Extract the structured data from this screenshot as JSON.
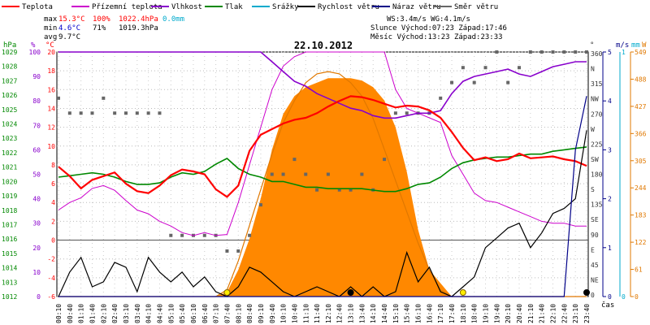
{
  "chart_data": {
    "type": "line",
    "title": "22.10.2012",
    "legend": [
      {
        "name": "Teplota",
        "color": "#ff0000"
      },
      {
        "name": "Přízemní teplota",
        "color": "#cc00cc"
      },
      {
        "name": "Vlhkost",
        "color": "#8800cc"
      },
      {
        "name": "Tlak",
        "color": "#008800"
      },
      {
        "name": "Srážky",
        "color": "#00aacc"
      },
      {
        "name": "Rychlost větru",
        "color": "#000000"
      },
      {
        "name": "Náraz větru",
        "color": "#000088"
      },
      {
        "name": "Směr větru",
        "color": "#666666"
      }
    ],
    "stats": {
      "max": {
        "label": "max",
        "temp": "15.3°C",
        "hum": "100%",
        "press": "1022.4hPa",
        "rain": "0.0mm"
      },
      "min": {
        "label": "min",
        "temp": "4.6°C",
        "hum": "71%",
        "press": "1019.3hPa"
      },
      "avg": {
        "label": "avg",
        "temp": "9.7°C"
      }
    },
    "info": {
      "line1": "WS:3.4m/s        WG:4.1m/s",
      "line2": "Slunce Východ:07:23  Západ:17:46",
      "line3": "Měsíc  Východ:13:23  Západ:23:33"
    },
    "axis_units": {
      "press": "hPa",
      "hum": "%",
      "temp": "°C",
      "dir": "°",
      "wind": "m/s",
      "rain": "mm",
      "solar": "W"
    },
    "axes": {
      "pressure": {
        "ticks": [
          "1029",
          "1028",
          "1027",
          "1026",
          "1025",
          "1024",
          "1023",
          "1022",
          "1021",
          "1020",
          "1019",
          "1018",
          "1017",
          "1016",
          "1015",
          "1014",
          "1013",
          "1012"
        ]
      },
      "humidity": {
        "ticks": [
          "100",
          "90",
          "80",
          "70",
          "60",
          "50",
          "40",
          "30",
          "20",
          "10",
          "0"
        ]
      },
      "temperature": {
        "ticks": [
          "20",
          "18",
          "16",
          "14",
          "12",
          "10",
          "8",
          "6",
          "4",
          "2",
          "0",
          "-2",
          "-4",
          "-6"
        ]
      },
      "direction": {
        "ticks": [
          "360",
          "N",
          "315",
          "NW",
          "270",
          "W",
          "225",
          "SW",
          "180",
          "S",
          "135",
          "SE",
          "90",
          "E",
          "45",
          "NE",
          "0"
        ]
      },
      "wind": {
        "ticks": [
          "5",
          "4",
          "3",
          "2",
          "1",
          "0"
        ]
      },
      "rain": {
        "ticks": [
          "1",
          "0"
        ]
      },
      "solar": {
        "ticks": [
          "549",
          "488",
          "427",
          "366",
          "305",
          "244",
          "183",
          "122",
          "61",
          "0"
        ]
      },
      "x_label": "čas"
    },
    "x": [
      "00:10",
      "00:40",
      "01:10",
      "01:40",
      "02:10",
      "02:40",
      "03:10",
      "03:40",
      "04:10",
      "04:40",
      "05:10",
      "05:40",
      "06:10",
      "06:40",
      "07:10",
      "07:40",
      "08:10",
      "08:40",
      "09:10",
      "09:40",
      "10:10",
      "10:40",
      "11:10",
      "11:40",
      "12:10",
      "12:40",
      "13:10",
      "13:40",
      "14:10",
      "14:40",
      "15:10",
      "15:40",
      "16:10",
      "16:40",
      "17:10",
      "17:40",
      "18:10",
      "18:40",
      "19:10",
      "19:40",
      "20:10",
      "20:40",
      "21:10",
      "21:40",
      "22:10",
      "22:40",
      "23:10",
      "23:40"
    ],
    "ylim": {
      "temp": [
        -6,
        20
      ],
      "hum": [
        0,
        100
      ],
      "press": [
        1012,
        1029
      ],
      "wind": [
        0,
        5
      ],
      "dir": [
        0,
        360
      ],
      "solar": [
        0,
        549
      ]
    },
    "series": {
      "temp": [
        7.8,
        6.8,
        5.5,
        6.4,
        6.8,
        7.2,
        6.0,
        5.2,
        5.0,
        5.8,
        6.9,
        7.5,
        7.3,
        7.0,
        5.4,
        4.6,
        5.8,
        9.5,
        11.2,
        11.8,
        12.4,
        12.8,
        13.0,
        13.5,
        14.2,
        14.8,
        15.3,
        15.2,
        14.9,
        14.5,
        14.1,
        14.3,
        14.2,
        13.8,
        13.0,
        11.5,
        9.8,
        8.5,
        8.8,
        8.4,
        8.6,
        9.2,
        8.7,
        8.8,
        8.9,
        8.6,
        8.4,
        7.9
      ],
      "ground": [
        3.2,
        4.0,
        4.5,
        5.5,
        5.8,
        5.3,
        4.2,
        3.2,
        2.8,
        2.0,
        1.5,
        0.8,
        0.5,
        0.8,
        0.5,
        0.6,
        4.0,
        8.0,
        12.0,
        16.0,
        18.5,
        19.5,
        20.0,
        20.0,
        20.0,
        20.0,
        20.0,
        20.0,
        20.0,
        20.0,
        16.0,
        14.0,
        13.5,
        13.0,
        12.5,
        9.0,
        7.0,
        5.0,
        4.2,
        4.0,
        3.5,
        3.0,
        2.5,
        2.0,
        1.8,
        1.8,
        1.5,
        1.5
      ],
      "hum": [
        100,
        100,
        100,
        100,
        100,
        100,
        100,
        100,
        100,
        100,
        100,
        100,
        100,
        100,
        100,
        100,
        100,
        100,
        100,
        96,
        92,
        88,
        86,
        83,
        81,
        79,
        77,
        76,
        74,
        73,
        73,
        74,
        75,
        75,
        76,
        83,
        88,
        90,
        91,
        92,
        93,
        91,
        90,
        92,
        94,
        95,
        96,
        96
      ],
      "press": [
        1020.3,
        1020.4,
        1020.5,
        1020.6,
        1020.5,
        1020.3,
        1020.0,
        1019.8,
        1019.8,
        1019.9,
        1020.3,
        1020.6,
        1020.5,
        1020.7,
        1021.2,
        1021.6,
        1020.9,
        1020.5,
        1020.3,
        1020.0,
        1020.0,
        1019.8,
        1019.6,
        1019.6,
        1019.5,
        1019.5,
        1019.5,
        1019.5,
        1019.4,
        1019.3,
        1019.3,
        1019.5,
        1019.8,
        1019.9,
        1020.3,
        1020.9,
        1021.3,
        1021.5,
        1021.6,
        1021.7,
        1021.7,
        1021.8,
        1021.9,
        1021.9,
        1022.1,
        1022.2,
        1022.3,
        1022.4
      ],
      "wind": [
        0,
        0.5,
        0.8,
        0.2,
        0.3,
        0.7,
        0.6,
        0.1,
        0.8,
        0.5,
        0.3,
        0.5,
        0.2,
        0.4,
        0.1,
        0,
        0.2,
        0.6,
        0.5,
        0.3,
        0.1,
        0,
        0.1,
        0.2,
        0.1,
        0,
        0.2,
        0,
        0.2,
        0,
        0.1,
        0.9,
        0.3,
        0.6,
        0.1,
        0,
        0.2,
        0.4,
        1.0,
        1.2,
        1.4,
        1.5,
        1.0,
        1.3,
        1.7,
        1.8,
        2.0,
        3.4
      ],
      "gust": [
        0,
        0,
        0,
        0,
        0,
        0,
        0,
        0,
        0,
        0,
        0,
        0,
        0,
        0,
        0,
        0,
        0,
        0,
        0,
        0,
        0,
        0,
        0,
        0,
        0,
        0,
        0,
        0,
        0,
        0,
        0,
        0,
        0,
        0,
        0,
        0,
        0,
        0,
        0,
        0,
        0,
        0,
        0,
        0,
        0,
        0,
        3.0,
        4.1
      ],
      "dir": [
        292,
        270,
        270,
        270,
        292,
        270,
        270,
        270,
        270,
        270,
        90,
        90,
        90,
        90,
        90,
        67,
        67,
        90,
        135,
        180,
        180,
        202,
        180,
        157,
        180,
        157,
        157,
        180,
        157,
        202,
        270,
        270,
        270,
        270,
        292,
        315,
        337,
        315,
        337,
        360,
        315,
        337,
        360,
        360,
        360,
        360,
        360,
        360
      ],
      "solar": [
        0,
        0,
        0,
        0,
        0,
        0,
        0,
        0,
        0,
        0,
        0,
        0,
        0,
        0,
        0,
        10,
        60,
        130,
        220,
        330,
        410,
        450,
        470,
        480,
        490,
        490,
        490,
        485,
        470,
        440,
        380,
        280,
        150,
        60,
        30,
        0,
        0,
        0,
        0,
        0,
        0,
        0,
        0,
        0,
        0,
        0,
        0,
        0
      ],
      "solar_theory": [
        0,
        0,
        0,
        0,
        0,
        0,
        0,
        0,
        0,
        0,
        0,
        0,
        0,
        0,
        0,
        15,
        80,
        160,
        240,
        320,
        390,
        440,
        480,
        500,
        505,
        500,
        480,
        450,
        400,
        330,
        260,
        190,
        120,
        60,
        15,
        0,
        0,
        0,
        0,
        0,
        0,
        0,
        0,
        0,
        0,
        0,
        0,
        0
      ]
    }
  }
}
